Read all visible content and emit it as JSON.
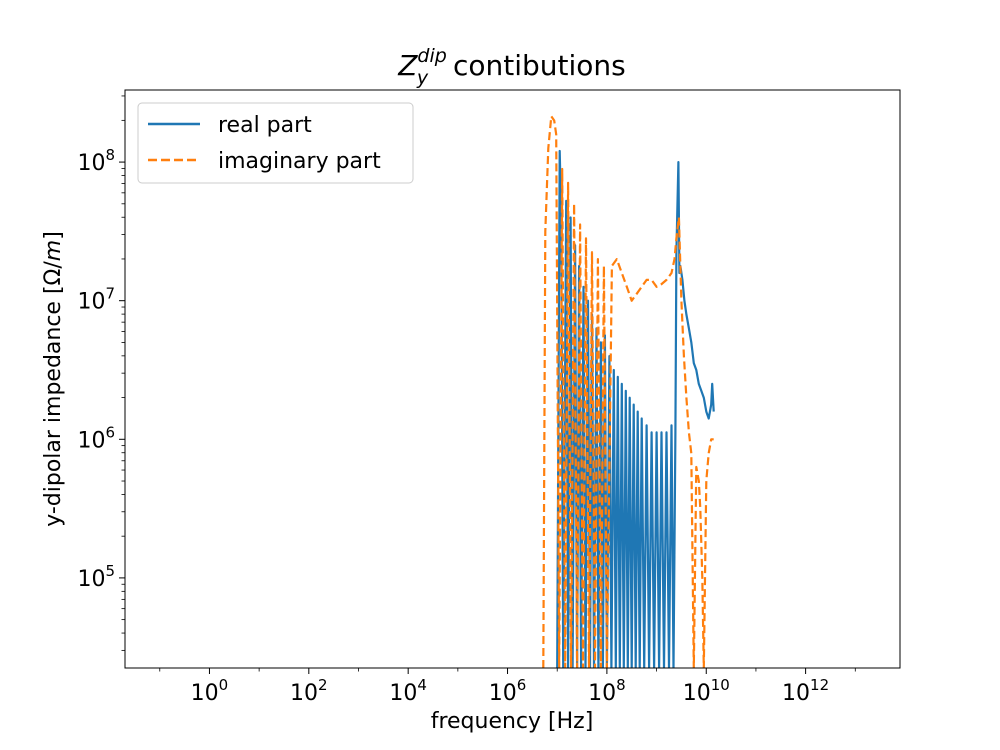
{
  "chart_data": {
    "type": "line",
    "title": "Z_y^dip contibutions",
    "title_parts": {
      "base": "Z",
      "sub": "y",
      "sup": "dip",
      "rest": " contibutions"
    },
    "xlabel": "frequency [Hz]",
    "ylabel_parts": {
      "pre": "y-dipolar impedance [Ω/",
      "unit_italic": "m",
      "post": "]"
    },
    "xscale": "log",
    "yscale": "log",
    "xlim_log10": [
      -1.7,
      13.9
    ],
    "ylim_log10": [
      4.35,
      8.52
    ],
    "x_ticks": [
      {
        "exp": 0,
        "base": "10",
        "sup": "0"
      },
      {
        "exp": 2,
        "base": "10",
        "sup": "2"
      },
      {
        "exp": 4,
        "base": "10",
        "sup": "4"
      },
      {
        "exp": 6,
        "base": "10",
        "sup": "6"
      },
      {
        "exp": 8,
        "base": "10",
        "sup": "8"
      },
      {
        "exp": 10,
        "base": "10",
        "sup": "10"
      },
      {
        "exp": 12,
        "base": "10",
        "sup": "12"
      }
    ],
    "y_ticks": [
      {
        "exp": 5,
        "base": "10",
        "sup": "5"
      },
      {
        "exp": 6,
        "base": "10",
        "sup": "6"
      },
      {
        "exp": 7,
        "base": "10",
        "sup": "7"
      },
      {
        "exp": 8,
        "base": "10",
        "sup": "8"
      }
    ],
    "grid": false,
    "legend_position": "upper-left",
    "series": [
      {
        "name": "real part",
        "color": "#1f77b4",
        "dash": "solid",
        "log10_x": [
          7.0,
          7.05,
          7.08,
          7.12,
          7.18,
          7.22,
          7.27,
          7.31,
          7.36,
          7.4,
          7.44,
          7.48,
          7.53,
          7.57,
          7.62,
          7.66,
          7.7,
          7.74,
          7.79,
          7.83,
          7.88,
          7.92,
          7.96,
          8.0,
          8.05,
          8.09,
          8.14,
          8.18,
          8.22,
          8.26,
          8.3,
          8.34,
          8.38,
          8.42,
          8.46,
          8.5,
          8.54,
          8.58,
          8.62,
          8.66,
          8.7,
          8.75,
          8.8,
          8.85,
          8.9,
          8.95,
          9.0,
          9.05,
          9.1,
          9.15,
          9.2,
          9.25,
          9.3,
          9.34,
          9.38,
          9.4,
          9.44,
          9.46,
          9.48,
          9.52,
          9.56,
          9.6,
          9.65,
          9.7,
          9.75,
          9.8,
          9.85,
          9.9,
          9.95,
          10.0,
          10.05,
          10.1,
          10.12,
          10.15
        ],
        "log10_y": [
          4.35,
          8.08,
          7.6,
          4.35,
          7.72,
          4.35,
          7.6,
          4.35,
          7.4,
          4.35,
          7.25,
          4.35,
          7.1,
          4.35,
          7.0,
          4.35,
          6.9,
          4.35,
          6.8,
          4.35,
          6.7,
          4.35,
          6.75,
          4.35,
          6.6,
          4.35,
          6.5,
          4.35,
          6.45,
          4.35,
          6.4,
          4.35,
          6.35,
          4.35,
          6.3,
          4.35,
          6.25,
          4.35,
          6.2,
          4.35,
          6.15,
          4.35,
          6.1,
          4.35,
          6.05,
          4.35,
          6.05,
          4.35,
          6.05,
          4.35,
          6.05,
          4.35,
          6.1,
          4.35,
          6.05,
          7.35,
          8.0,
          7.2,
          7.25,
          7.15,
          7.0,
          6.9,
          6.8,
          6.7,
          6.55,
          6.5,
          6.4,
          6.35,
          6.3,
          6.2,
          6.15,
          6.25,
          6.4,
          6.2
        ]
      },
      {
        "name": "imaginary part",
        "color": "#ff7f0e",
        "dash": "dashed",
        "log10_x": [
          6.72,
          6.76,
          6.82,
          6.88,
          6.94,
          6.98,
          7.04,
          7.1,
          7.16,
          7.22,
          7.28,
          7.34,
          7.4,
          7.46,
          7.52,
          7.58,
          7.64,
          7.7,
          7.76,
          7.82,
          7.88,
          7.94,
          8.0,
          8.1,
          8.2,
          8.3,
          8.4,
          8.5,
          8.6,
          8.7,
          8.8,
          8.9,
          9.0,
          9.1,
          9.2,
          9.3,
          9.36,
          9.4,
          9.45,
          9.5,
          9.55,
          9.6,
          9.65,
          9.7,
          9.75,
          9.8,
          9.85,
          9.88,
          9.92,
          9.95,
          10.0,
          10.05,
          10.1,
          10.15
        ],
        "log10_y": [
          4.35,
          7.5,
          8.1,
          8.33,
          8.3,
          8.2,
          4.35,
          7.95,
          4.35,
          7.85,
          4.35,
          7.7,
          4.35,
          7.55,
          4.35,
          7.45,
          4.35,
          7.35,
          4.35,
          7.3,
          4.35,
          7.25,
          4.35,
          7.25,
          7.3,
          7.2,
          7.1,
          7.0,
          7.05,
          7.1,
          7.15,
          7.15,
          7.1,
          7.12,
          7.15,
          7.2,
          7.3,
          7.45,
          7.6,
          7.0,
          6.6,
          6.3,
          6.05,
          5.9,
          4.35,
          5.8,
          5.7,
          5.5,
          5.0,
          4.35,
          5.7,
          5.9,
          6.0,
          6.0
        ]
      }
    ]
  }
}
